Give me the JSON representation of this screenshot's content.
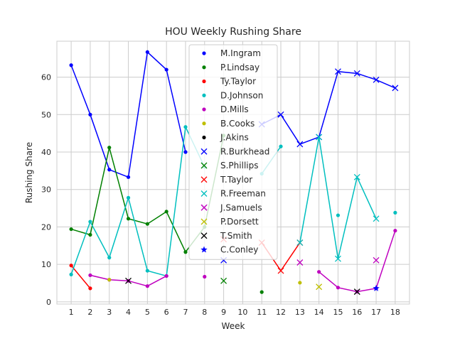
{
  "chart_data": {
    "type": "line",
    "title": "HOU Weekly Rushing Share",
    "xlabel": "Week",
    "ylabel": "Rushing Share",
    "xlim": [
      0.25,
      18.75
    ],
    "ylim": [
      -0.6,
      69.6
    ],
    "x_ticks": [
      1,
      2,
      3,
      4,
      5,
      6,
      7,
      8,
      9,
      10,
      11,
      12,
      13,
      14,
      15,
      16,
      17,
      18
    ],
    "y_ticks": [
      0,
      10,
      20,
      30,
      40,
      50,
      60
    ],
    "grid": true,
    "legend_position": "upper center",
    "series": [
      {
        "name": "M.Ingram",
        "color": "#0000ff",
        "marker": "dot",
        "points": [
          [
            1,
            63.2
          ],
          [
            2,
            50.0
          ],
          [
            3,
            35.3
          ],
          [
            4,
            33.3
          ],
          [
            5,
            66.7
          ],
          [
            6,
            62.0
          ],
          [
            7,
            40.0
          ]
        ]
      },
      {
        "name": "P.Lindsay",
        "color": "#008000",
        "marker": "dot",
        "points": [
          [
            1,
            19.4
          ],
          [
            2,
            17.9
          ],
          [
            3,
            41.2
          ],
          [
            4,
            22.2
          ],
          [
            5,
            20.8
          ],
          [
            6,
            24.1
          ],
          [
            7,
            13.3
          ],
          [
            8,
            20.0
          ],
          [
            9,
            44.4
          ],
          [
            11,
            2.6
          ]
        ]
      },
      {
        "name": "Ty.Taylor",
        "color": "#ff0000",
        "marker": "dot",
        "points": [
          [
            1,
            9.7
          ],
          [
            2,
            3.6
          ]
        ]
      },
      {
        "name": "D.Johnson",
        "color": "#00bfbf",
        "marker": "dot",
        "points": [
          [
            1,
            7.3
          ],
          [
            2,
            21.4
          ],
          [
            3,
            11.8
          ],
          [
            4,
            27.8
          ],
          [
            5,
            8.3
          ],
          [
            6,
            6.9
          ],
          [
            7,
            46.7
          ],
          [
            8,
            36.0
          ],
          [
            11,
            34.2
          ],
          [
            12,
            41.5
          ],
          [
            15,
            23.1
          ],
          [
            18,
            23.8
          ]
        ]
      },
      {
        "name": "D.Mills",
        "color": "#bf00bf",
        "marker": "dot",
        "points": [
          [
            2,
            7.1
          ],
          [
            3,
            5.9
          ],
          [
            4,
            5.6
          ],
          [
            5,
            4.2
          ],
          [
            6,
            6.9
          ],
          [
            8,
            6.7
          ],
          [
            14,
            8.0
          ],
          [
            15,
            3.8
          ],
          [
            16,
            2.7
          ],
          [
            17,
            3.6
          ],
          [
            18,
            19.0
          ]
        ]
      },
      {
        "name": "B.Cooks",
        "color": "#bfbf00",
        "marker": "dot",
        "points": [
          [
            3,
            5.9
          ],
          [
            13,
            5.1
          ]
        ]
      },
      {
        "name": "J.Akins",
        "color": "#000000",
        "marker": "dot",
        "points": []
      },
      {
        "name": "R.Burkhead",
        "color": "#0000ff",
        "marker": "x",
        "points": [
          [
            9,
            11.1
          ],
          [
            11,
            47.4
          ],
          [
            12,
            50.0
          ],
          [
            13,
            42.1
          ],
          [
            14,
            44.0
          ],
          [
            15,
            61.5
          ],
          [
            16,
            61.0
          ],
          [
            17,
            59.3
          ],
          [
            18,
            57.1
          ]
        ]
      },
      {
        "name": "S.Phillips",
        "color": "#008000",
        "marker": "x",
        "points": [
          [
            9,
            5.6
          ]
        ]
      },
      {
        "name": "T.Taylor",
        "color": "#ff0000",
        "marker": "x",
        "points": [
          [
            9,
            16.7
          ],
          [
            11,
            15.8
          ],
          [
            12,
            8.3
          ],
          [
            13,
            15.8
          ]
        ]
      },
      {
        "name": "R.Freeman",
        "color": "#00bfbf",
        "marker": "x",
        "points": [
          [
            13,
            15.8
          ],
          [
            14,
            44.0
          ],
          [
            15,
            11.5
          ],
          [
            16,
            33.3
          ],
          [
            17,
            22.2
          ]
        ]
      },
      {
        "name": "J.Samuels",
        "color": "#bf00bf",
        "marker": "x",
        "points": [
          [
            8,
            25.3
          ],
          [
            13,
            10.5
          ],
          [
            17,
            11.1
          ]
        ]
      },
      {
        "name": "P.Dorsett",
        "color": "#bfbf00",
        "marker": "x",
        "points": [
          [
            14,
            4.0
          ]
        ]
      },
      {
        "name": "T.Smith",
        "color": "#000000",
        "marker": "x",
        "points": [
          [
            4,
            5.6
          ],
          [
            16,
            2.7
          ]
        ]
      },
      {
        "name": "C.Conley",
        "color": "#0000ff",
        "marker": "star",
        "points": [
          [
            17,
            3.6
          ]
        ]
      }
    ]
  }
}
